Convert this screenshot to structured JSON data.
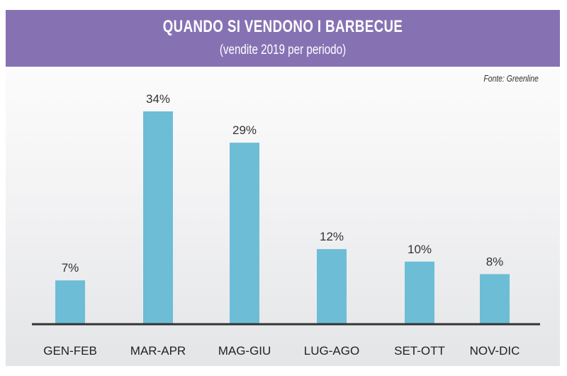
{
  "chart_data": {
    "type": "bar",
    "title": "QUANDO SI VENDONO I BARBECUE",
    "subtitle": "(vendite 2019 per periodo)",
    "source": "Fonte: Greenline",
    "categories": [
      "GEN-FEB",
      "MAR-APR",
      "MAG-GIU",
      "LUG-AGO",
      "SET-OTT",
      "NOV-DIC"
    ],
    "values": [
      7,
      34,
      29,
      12,
      10,
      8
    ],
    "value_labels": [
      "7%",
      "34%",
      "29%",
      "12%",
      "10%",
      "8%"
    ],
    "xlabel": "",
    "ylabel": "",
    "ylim": [
      0,
      34
    ],
    "grid": false,
    "colors": {
      "bar": "#6dbdd6",
      "header": "#8672b3",
      "axis": "#333333"
    }
  }
}
